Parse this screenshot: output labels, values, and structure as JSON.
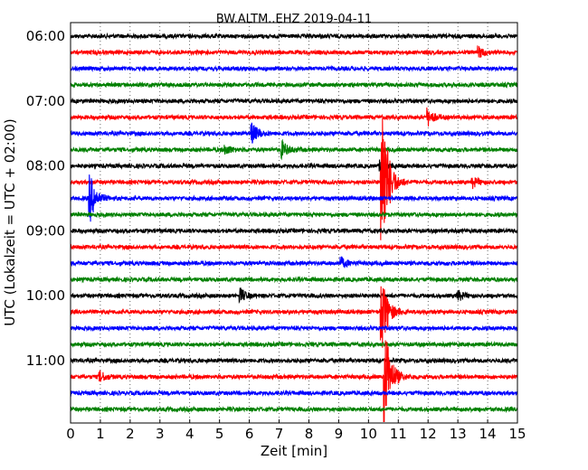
{
  "chart_data": {
    "type": "line",
    "title": "BW.ALTM..EHZ 2019-04-11",
    "xlabel": "Zeit  [min]",
    "ylabel": "UTC (Lokalzeit = UTC + 02:00)",
    "xlim": [
      0,
      15
    ],
    "x_ticks": [
      "0",
      "1",
      "2",
      "3",
      "4",
      "5",
      "6",
      "7",
      "8",
      "9",
      "10",
      "11",
      "12",
      "13",
      "14",
      "15"
    ],
    "y_ticks": [
      "06:00",
      "07:00",
      "08:00",
      "09:00",
      "10:00",
      "11:00"
    ],
    "grid": "vertical dotted lines at each minute",
    "trace_interval_min": 15,
    "trace_colors": [
      "#000000",
      "#ff0000",
      "#0000ff",
      "#008000"
    ],
    "traces": [
      {
        "start": "06:00",
        "color": "#000000",
        "events": []
      },
      {
        "start": "06:15",
        "color": "#ff0000",
        "events": [
          {
            "t": 13.7,
            "amp": 0.3
          }
        ]
      },
      {
        "start": "06:30",
        "color": "#0000ff",
        "events": []
      },
      {
        "start": "06:45",
        "color": "#008000",
        "events": []
      },
      {
        "start": "07:00",
        "color": "#000000",
        "events": []
      },
      {
        "start": "07:15",
        "color": "#ff0000",
        "events": [
          {
            "t": 12.0,
            "amp": 0.5
          }
        ]
      },
      {
        "start": "07:30",
        "color": "#0000ff",
        "events": [
          {
            "t": 6.1,
            "amp": 0.6
          }
        ]
      },
      {
        "start": "07:45",
        "color": "#008000",
        "events": [
          {
            "t": 7.1,
            "amp": 0.5
          },
          {
            "t": 5.2,
            "amp": 0.3
          }
        ]
      },
      {
        "start": "08:00",
        "color": "#000000",
        "events": [
          {
            "t": 10.4,
            "amp": 0.3
          }
        ]
      },
      {
        "start": "08:15",
        "color": "#ff0000",
        "events": [
          {
            "t": 10.45,
            "amp": 6.0
          },
          {
            "t": 13.5,
            "amp": 0.3
          }
        ]
      },
      {
        "start": "08:30",
        "color": "#0000ff",
        "events": [
          {
            "t": 0.65,
            "amp": 1.5
          }
        ]
      },
      {
        "start": "08:45",
        "color": "#008000",
        "events": []
      },
      {
        "start": "09:00",
        "color": "#000000",
        "events": []
      },
      {
        "start": "09:15",
        "color": "#ff0000",
        "events": []
      },
      {
        "start": "09:30",
        "color": "#0000ff",
        "events": [
          {
            "t": 9.1,
            "amp": 0.3
          }
        ]
      },
      {
        "start": "09:45",
        "color": "#008000",
        "events": []
      },
      {
        "start": "10:00",
        "color": "#000000",
        "events": [
          {
            "t": 5.7,
            "amp": 0.4
          },
          {
            "t": 13.0,
            "amp": 0.3
          }
        ]
      },
      {
        "start": "10:15",
        "color": "#ff0000",
        "events": [
          {
            "t": 10.45,
            "amp": 2.5
          }
        ]
      },
      {
        "start": "10:30",
        "color": "#0000ff",
        "events": []
      },
      {
        "start": "10:45",
        "color": "#008000",
        "events": []
      },
      {
        "start": "11:00",
        "color": "#000000",
        "events": []
      },
      {
        "start": "11:15",
        "color": "#ff0000",
        "events": [
          {
            "t": 10.55,
            "amp": 3.5
          },
          {
            "t": 1.0,
            "amp": 0.3
          }
        ]
      },
      {
        "start": "11:30",
        "color": "#0000ff",
        "events": []
      },
      {
        "start": "11:45",
        "color": "#008000",
        "events": []
      }
    ]
  }
}
